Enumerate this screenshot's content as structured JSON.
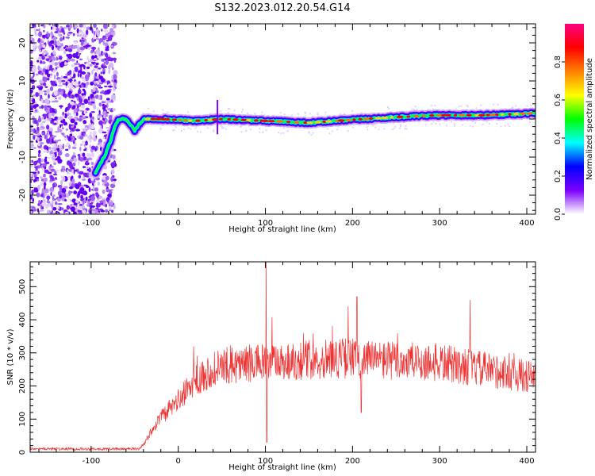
{
  "title": "S132.2023.012.20.54.G14",
  "chart_data": [
    {
      "type": "heatmap",
      "xlabel": "Height of straight line (km)",
      "ylabel": "Frequency (Hz)",
      "xlim": [
        -170,
        410
      ],
      "ylim": [
        -25,
        25
      ],
      "x_ticks": [
        -100,
        0,
        100,
        200,
        300,
        400
      ],
      "y_ticks": [
        -20,
        -10,
        0,
        10,
        20
      ],
      "colorbar": {
        "label": "Normalized spectral amplitude",
        "range": [
          0,
          1
        ],
        "ticks": [
          0.0,
          0.2,
          0.4,
          0.6,
          0.8
        ],
        "colors": [
          "#ffffff",
          "#7b00ff",
          "#0000ff",
          "#00ffff",
          "#00ff00",
          "#ffff00",
          "#ff8000",
          "#ff0000",
          "#ff0080"
        ]
      },
      "noise_region": {
        "x": [
          -170,
          -78
        ],
        "frequency_range": [
          -25,
          25
        ]
      },
      "ridge": [
        {
          "x": -95,
          "y": -14
        },
        {
          "x": -85,
          "y": -10
        },
        {
          "x": -78,
          "y": -6
        },
        {
          "x": -73,
          "y": -2
        },
        {
          "x": -68,
          "y": 0
        },
        {
          "x": -60,
          "y": 0
        },
        {
          "x": -50,
          "y": -3
        },
        {
          "x": -40,
          "y": 0
        },
        {
          "x": -20,
          "y": 0
        },
        {
          "x": 20,
          "y": -0.5
        },
        {
          "x": 50,
          "y": 0
        },
        {
          "x": 100,
          "y": -0.5
        },
        {
          "x": 150,
          "y": -1
        },
        {
          "x": 200,
          "y": -0.2
        },
        {
          "x": 250,
          "y": 0.5
        },
        {
          "x": 300,
          "y": 1
        },
        {
          "x": 350,
          "y": 1
        },
        {
          "x": 410,
          "y": 1.5
        }
      ],
      "spike": {
        "x": 45,
        "y_range": [
          -4,
          5
        ]
      }
    },
    {
      "type": "line",
      "xlabel": "Height of straight line (km)",
      "ylabel": "SNR (10 * v/v)",
      "xlim": [
        -170,
        410
      ],
      "ylim": [
        0,
        575
      ],
      "x_ticks": [
        -100,
        0,
        100,
        200,
        300,
        400
      ],
      "y_ticks": [
        0,
        100,
        200,
        300,
        400,
        500
      ],
      "series": [
        {
          "color": "#ee3333",
          "envelope": [
            {
              "x": -170,
              "y": 10
            },
            {
              "x": -45,
              "y": 10
            },
            {
              "x": -38,
              "y": 30
            },
            {
              "x": -25,
              "y": 90
            },
            {
              "x": -10,
              "y": 130
            },
            {
              "x": 5,
              "y": 170
            },
            {
              "x": 20,
              "y": 220
            },
            {
              "x": 40,
              "y": 250
            },
            {
              "x": 60,
              "y": 265
            },
            {
              "x": 100,
              "y": 270
            },
            {
              "x": 150,
              "y": 280
            },
            {
              "x": 200,
              "y": 285
            },
            {
              "x": 250,
              "y": 275
            },
            {
              "x": 300,
              "y": 270
            },
            {
              "x": 350,
              "y": 250
            },
            {
              "x": 410,
              "y": 225
            }
          ],
          "peaks": [
            {
              "x": 101,
              "y": 575
            },
            {
              "x": 101.5,
              "y": 30
            },
            {
              "x": 205,
              "y": 470
            },
            {
              "x": 195,
              "y": 440
            },
            {
              "x": 335,
              "y": 460
            },
            {
              "x": 210,
              "y": 120
            }
          ]
        }
      ]
    }
  ]
}
